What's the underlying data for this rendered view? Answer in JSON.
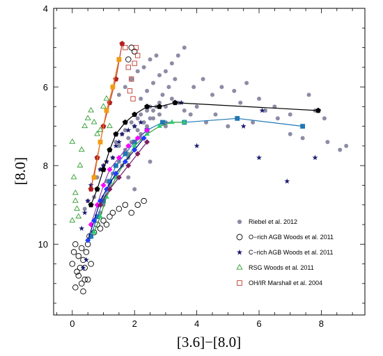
{
  "chart_data": {
    "type": "scatter",
    "xlabel": "[3.6]−[8.0]",
    "ylabel": "[8.0]",
    "xlim": [
      -0.6,
      9.4
    ],
    "ylim": [
      11.8,
      4.0
    ],
    "y_inverted": true,
    "x_ticks": [
      0,
      2,
      4,
      6,
      8
    ],
    "y_ticks": [
      4,
      6,
      8,
      10
    ],
    "grid": false,
    "legend_position": "bottom-right",
    "legend": [
      {
        "label": "Riebel et al. 2012",
        "marker": "filled-circle",
        "color": "#8c8ca6"
      },
      {
        "label": "O−rich AGB Woods et al. 2011",
        "marker": "open-circle",
        "color": "#000000"
      },
      {
        "label": "C−rich AGB Woods et al. 2011",
        "marker": "star",
        "color": "#1a1a6e"
      },
      {
        "label": "RSG Woods et al. 2011",
        "marker": "open-triangle",
        "color": "#2e9b2e"
      },
      {
        "label": "OH/IR Marshall et al. 2004",
        "marker": "open-square",
        "color": "#c0392b"
      }
    ],
    "series": [
      {
        "name": "Riebel et al. 2012",
        "marker": "filled-circle",
        "color": "#8c8ca6",
        "x": [
          0.4,
          0.5,
          0.6,
          0.7,
          0.8,
          0.9,
          1.0,
          1.1,
          1.2,
          1.3,
          1.4,
          1.5,
          1.6,
          1.7,
          1.8,
          1.9,
          2.0,
          2.1,
          2.2,
          2.3,
          2.4,
          2.5,
          2.6,
          2.8,
          3.0,
          3.2,
          3.4,
          3.6,
          3.8,
          4.0,
          4.3,
          4.6,
          5.0,
          5.4,
          5.8,
          6.2,
          6.6,
          7.0,
          7.4,
          7.8,
          8.2,
          8.6,
          0.6,
          0.8,
          1.0,
          1.2,
          1.4,
          1.6,
          1.8,
          2.0,
          2.2,
          2.4,
          2.6,
          2.8,
          3.0,
          1.1,
          1.3,
          1.5,
          1.7,
          1.9,
          2.1,
          2.3,
          2.5,
          2.7,
          2.9,
          3.1,
          3.3,
          0.9,
          1.0,
          1.2,
          1.4,
          1.6,
          1.8,
          2.0,
          2.2,
          1.5,
          1.7,
          1.9,
          2.1,
          2.3,
          2.5,
          2.7,
          2.2,
          2.4,
          2.6,
          2.8,
          3.0,
          3.2,
          3.4,
          3.6,
          3.9,
          4.2,
          4.5,
          4.8,
          5.2,
          5.6,
          6.0,
          6.5,
          7.0,
          7.6,
          8.1,
          8.8,
          1.8,
          2.0,
          2.5,
          3.0
        ],
        "y": [
          9.1,
          8.9,
          8.6,
          8.8,
          8.3,
          8.1,
          8.0,
          7.9,
          7.6,
          7.8,
          7.4,
          7.5,
          7.2,
          7.1,
          7.3,
          6.9,
          7.0,
          6.8,
          6.7,
          6.9,
          6.6,
          6.5,
          6.6,
          6.4,
          6.5,
          6.3,
          6.4,
          6.6,
          6.7,
          6.5,
          6.9,
          6.7,
          7.0,
          6.4,
          6.9,
          6.6,
          6.8,
          7.2,
          7.3,
          6.6,
          7.4,
          7.6,
          9.5,
          9.3,
          9.0,
          8.6,
          8.3,
          8.0,
          7.7,
          7.4,
          7.2,
          7.0,
          6.8,
          6.7,
          6.9,
          8.4,
          8.2,
          7.9,
          7.6,
          7.4,
          7.1,
          6.9,
          6.8,
          6.5,
          6.2,
          6.0,
          5.8,
          9.2,
          8.8,
          8.5,
          8.2,
          8.0,
          7.8,
          7.6,
          7.3,
          6.2,
          6.0,
          5.8,
          5.6,
          5.5,
          5.3,
          5.2,
          6.3,
          6.1,
          5.9,
          5.7,
          5.6,
          5.4,
          5.2,
          5.0,
          6.0,
          5.8,
          6.2,
          6.0,
          6.1,
          5.9,
          6.3,
          6.5,
          6.7,
          6.2,
          6.8,
          7.5,
          8.3,
          8.6,
          7.9,
          7.0
        ]
      },
      {
        "name": "O−rich AGB Woods et al. 2011",
        "marker": "open-circle",
        "color": "#000000",
        "x": [
          0.0,
          0.05,
          0.1,
          0.15,
          0.2,
          0.25,
          0.3,
          0.35,
          0.4,
          0.45,
          0.5,
          0.55,
          0.6,
          0.7,
          0.8,
          0.9,
          1.0,
          1.1,
          1.2,
          1.3,
          1.5,
          1.7,
          1.9,
          2.1,
          2.3,
          0.1,
          0.2,
          0.3,
          0.4,
          1.8,
          1.9,
          2.0,
          0.35,
          0.5
        ],
        "y": [
          10.5,
          10.2,
          10.0,
          10.7,
          10.3,
          10.6,
          10.1,
          10.4,
          10.9,
          10.2,
          10.0,
          9.8,
          10.5,
          9.7,
          9.5,
          9.6,
          9.4,
          9.5,
          9.3,
          9.2,
          9.1,
          9.0,
          9.2,
          9.0,
          8.9,
          11.1,
          10.8,
          11.0,
          10.6,
          5.3,
          5.0,
          5.1,
          11.2,
          10.9
        ]
      },
      {
        "name": "C−rich AGB Woods et al. 2011",
        "marker": "star",
        "color": "#1a1a6e",
        "x": [
          0.3,
          0.4,
          0.5,
          0.6,
          0.7,
          0.8,
          0.9,
          1.0,
          1.1,
          1.2,
          1.3,
          1.4,
          1.5,
          1.6,
          1.8,
          2.0,
          2.2,
          2.4,
          3.5,
          4.0,
          5.5,
          6.0,
          6.1,
          6.9,
          7.8,
          0.35,
          0.45
        ],
        "y": [
          9.6,
          9.2,
          8.9,
          8.5,
          8.3,
          8.6,
          8.1,
          8.0,
          7.9,
          7.6,
          7.8,
          7.5,
          7.4,
          7.2,
          7.1,
          7.0,
          6.9,
          7.1,
          6.4,
          7.5,
          7.0,
          7.8,
          6.6,
          8.4,
          7.8,
          10.6,
          10.4
        ]
      },
      {
        "name": "RSG Woods et al. 2011",
        "marker": "open-triangle",
        "color": "#2e9b2e",
        "x": [
          0.0,
          0.05,
          0.1,
          0.15,
          0.2,
          0.25,
          0.3,
          0.4,
          0.5,
          0.6,
          0.7,
          0.8,
          0.9,
          1.0,
          1.1,
          1.2,
          0.0,
          0.1
        ],
        "y": [
          7.4,
          8.3,
          8.7,
          9.1,
          9.3,
          8.0,
          7.6,
          7.0,
          6.8,
          6.6,
          6.9,
          7.2,
          7.1,
          6.5,
          6.3,
          7.0,
          9.4,
          8.9
        ]
      },
      {
        "name": "OH/IR Marshall et al. 2004",
        "marker": "open-square",
        "color": "#c0392b",
        "x": [
          1.7,
          1.8,
          1.9,
          2.0,
          2.05,
          2.1,
          1.85,
          1.95
        ],
        "y": [
          5.0,
          5.5,
          5.8,
          5.4,
          5.0,
          5.2,
          6.1,
          6.3
        ]
      }
    ],
    "tracks": [
      {
        "line_color": "#c0392b",
        "marker": "pentagon",
        "marker_color": "#b22222",
        "x": [
          0.6,
          0.8,
          1.0,
          1.2,
          1.4,
          1.6
        ],
        "y": [
          8.6,
          7.8,
          7.0,
          6.4,
          5.8,
          4.9
        ]
      },
      {
        "line_color": "#e67e22",
        "marker": "filled-square",
        "marker_color": "#f39c12",
        "x": [
          0.7,
          0.9,
          1.1,
          1.3,
          1.5
        ],
        "y": [
          8.3,
          7.4,
          6.6,
          6.0,
          5.3
        ]
      },
      {
        "line_color": "#000000",
        "marker": "pentagon",
        "marker_color": "#000000",
        "x": [
          0.6,
          0.8,
          1.0,
          1.2,
          1.4,
          1.7,
          2.0,
          2.4,
          2.8,
          3.3,
          7.9
        ],
        "y": [
          9.0,
          8.6,
          8.1,
          7.6,
          7.2,
          6.9,
          6.7,
          6.5,
          6.5,
          6.4,
          6.6
        ]
      },
      {
        "line_color": "#1f77b4",
        "marker": "filled-square",
        "marker_color": "#1f77b4",
        "x": [
          0.6,
          0.8,
          1.0,
          1.2,
          1.4,
          1.7,
          2.0,
          2.4,
          2.9,
          3.6,
          5.3,
          7.4
        ],
        "y": [
          9.8,
          9.3,
          8.9,
          8.4,
          8.0,
          7.7,
          7.4,
          7.1,
          6.9,
          6.9,
          6.8,
          7.0
        ]
      },
      {
        "line_color": "#2e9b2e",
        "marker": "filled-triangle",
        "marker_color": "#2ecc71",
        "x": [
          0.7,
          0.9,
          1.1,
          1.4,
          1.7,
          2.0,
          2.4,
          2.8,
          3.2,
          3.6
        ],
        "y": [
          9.7,
          9.3,
          8.8,
          8.3,
          7.9,
          7.5,
          7.2,
          7.0,
          6.9,
          6.9
        ]
      },
      {
        "line_color": "#8e44ad",
        "marker": "filled-diamond",
        "marker_color": "#ff00ff",
        "x": [
          0.6,
          0.8,
          1.0,
          1.2,
          1.5,
          1.8,
          2.1,
          2.4
        ],
        "y": [
          9.5,
          9.0,
          8.5,
          8.1,
          7.8,
          7.5,
          7.3,
          7.1
        ]
      },
      {
        "line_color": "#00008b",
        "marker": "filled-diamond",
        "marker_color": "#1e3cff",
        "x": [
          0.5,
          0.7,
          0.9,
          1.1,
          1.4,
          1.7,
          2.0,
          2.3
        ],
        "y": [
          9.9,
          9.4,
          8.9,
          8.6,
          8.2,
          7.9,
          7.6,
          7.3
        ]
      },
      {
        "line_color": "#6b1a6b",
        "marker": "filled-diamond",
        "marker_color": "#7d1f5a",
        "x": [
          0.9,
          1.2,
          1.5,
          1.8,
          2.1,
          2.4
        ],
        "y": [
          9.0,
          8.6,
          8.3,
          8.0,
          7.7,
          7.4
        ]
      }
    ]
  }
}
